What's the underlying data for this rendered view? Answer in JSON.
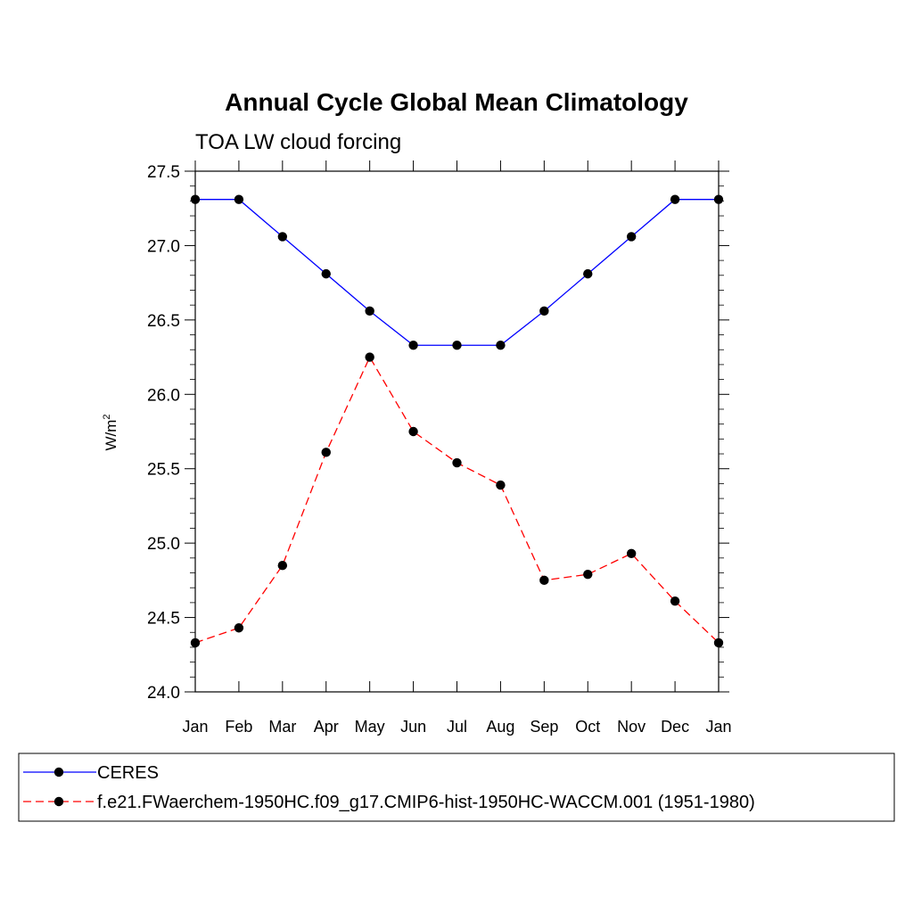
{
  "chart_data": {
    "type": "line",
    "title": "Annual Cycle Global Mean Climatology",
    "subtitle": "TOA LW cloud forcing",
    "xlabel": "",
    "ylabel": "W/m",
    "ylabel_superscript": "2",
    "categories": [
      "Jan",
      "Feb",
      "Mar",
      "Apr",
      "May",
      "Jun",
      "Jul",
      "Aug",
      "Sep",
      "Oct",
      "Nov",
      "Dec",
      "Jan"
    ],
    "ylim": [
      24.0,
      27.5
    ],
    "yticks": [
      "24.0",
      "24.5",
      "25.0",
      "25.5",
      "26.0",
      "26.5",
      "27.0",
      "27.5"
    ],
    "grid": false,
    "legend_position": "bottom",
    "series": [
      {
        "name": "CERES",
        "color": "#0000ff",
        "dash": "solid",
        "marker": "filled-circle",
        "values": [
          27.31,
          27.31,
          27.06,
          26.81,
          26.56,
          26.33,
          26.33,
          26.33,
          26.56,
          26.81,
          27.06,
          27.31,
          27.31
        ]
      },
      {
        "name": "f.e21.FWaerchem-1950HC.f09_g17.CMIP6-hist-1950HC-WACCM.001 (1951-1980)",
        "color": "#ff0000",
        "dash": "dashed",
        "marker": "filled-circle",
        "values": [
          24.33,
          24.43,
          24.85,
          25.61,
          26.25,
          25.75,
          25.54,
          25.39,
          24.75,
          24.79,
          24.93,
          24.61,
          24.33
        ]
      }
    ]
  }
}
